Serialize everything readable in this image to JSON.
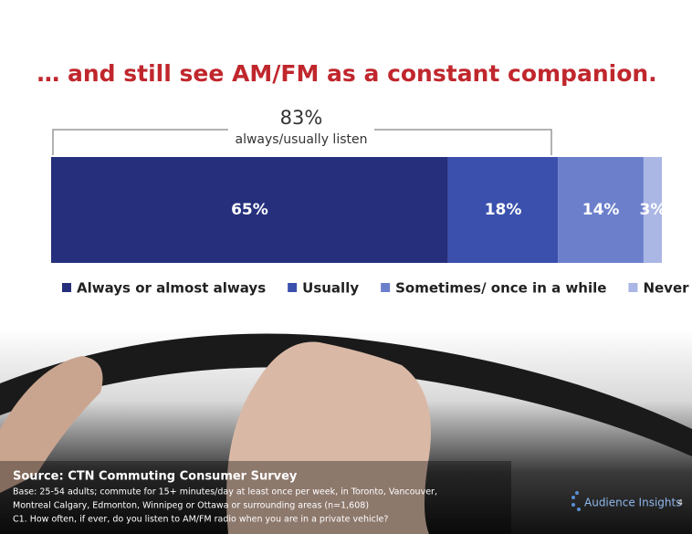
{
  "chart_data": {
    "type": "bar",
    "orientation": "horizontal",
    "stacked": true,
    "title": "… and still see AM/FM as a constant companion.",
    "annotation": {
      "value": "83%",
      "label": "always/usually listen"
    },
    "categories": [
      null
    ],
    "series": [
      {
        "name": "Always or almost always",
        "color": "#262f7c",
        "values": [
          65
        ],
        "value_labels": [
          "65%"
        ]
      },
      {
        "name": "Usually",
        "color": "#3b50ad",
        "values": [
          18
        ],
        "value_labels": [
          "18%"
        ]
      },
      {
        "name": "Sometimes/ once in a while",
        "color": "#6b7fcb",
        "values": [
          14
        ],
        "value_labels": [
          "14%"
        ]
      },
      {
        "name": "Never",
        "color": "#aab6e4",
        "values": [
          3
        ],
        "value_labels": [
          "3%"
        ]
      }
    ],
    "legend": "bottom"
  },
  "footer": {
    "source": "Source: CTN Commuting Consumer Survey",
    "notes": [
      "Base: 25-54 adults; commute for 15+ minutes/day at least once per week, in Toronto, Vancouver,",
      "Montreal Calgary, Edmonton, Winnipeg or Ottawa or surrounding areas (n=1,608)",
      "C1. How often, if ever, do you listen to AM/FM radio when you are in a private vehicle?"
    ],
    "logo": "Audience Insights",
    "page": "4"
  }
}
